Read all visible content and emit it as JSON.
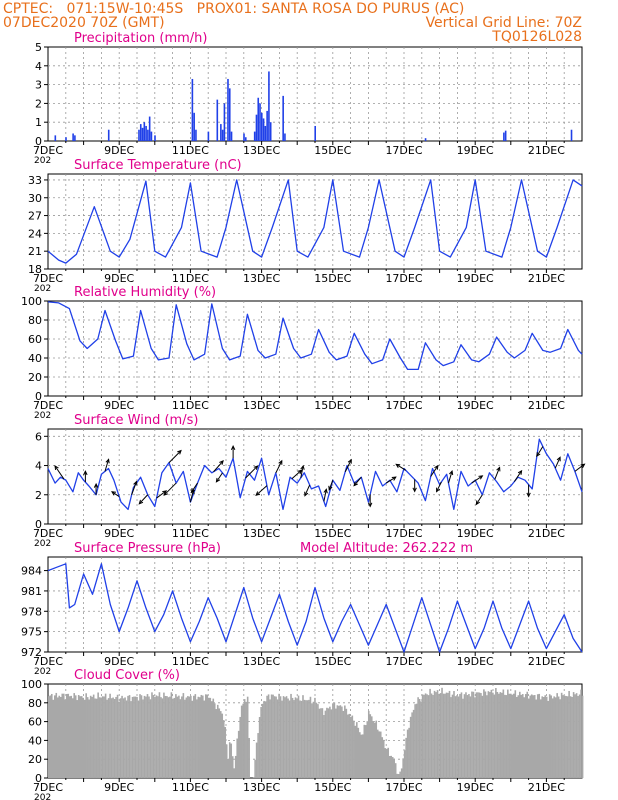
{
  "header": {
    "line1": "CPTEC:   071:15W-10:45S   PROX01: SANTA ROSA DO PURUS (AC)",
    "line2_left": "07DEC2020 70Z (GMT)",
    "line2_right": "Vertical Grid Line: 70Z",
    "line3_right": "TQ0126L028"
  },
  "colors": {
    "title": "#e8701c",
    "panel_title": "#e0008c",
    "series": "#2040e8",
    "bars": "#a8a8a8"
  },
  "x_axis": {
    "major_ticks": [
      "7DEC",
      "9DEC",
      "11DEC",
      "13DEC",
      "15DEC",
      "17DEC",
      "19DEC",
      "21DEC"
    ],
    "year_stub": "202"
  },
  "chart_data": [
    {
      "type": "bar",
      "title": "Precipitation (mm/h)",
      "ylim": [
        0,
        5
      ],
      "yticks": [
        "0",
        "1",
        "2",
        "3",
        "4",
        "5"
      ],
      "x_unit": "days since 7DEC 00Z",
      "bars": [
        [
          0.2,
          0.3
        ],
        [
          0.5,
          0.2
        ],
        [
          0.7,
          0.4
        ],
        [
          0.75,
          0.3
        ],
        [
          1.7,
          0.6
        ],
        [
          2.55,
          0.6
        ],
        [
          2.6,
          0.9
        ],
        [
          2.65,
          0.7
        ],
        [
          2.7,
          1.0
        ],
        [
          2.75,
          0.8
        ],
        [
          2.8,
          0.6
        ],
        [
          2.85,
          1.3
        ],
        [
          2.9,
          0.5
        ],
        [
          3.0,
          0.3
        ],
        [
          4.05,
          3.3
        ],
        [
          4.1,
          1.5
        ],
        [
          4.15,
          0.6
        ],
        [
          4.5,
          0.5
        ],
        [
          4.75,
          2.2
        ],
        [
          4.85,
          0.9
        ],
        [
          4.9,
          0.6
        ],
        [
          4.95,
          2.0
        ],
        [
          5.05,
          3.3
        ],
        [
          5.1,
          2.8
        ],
        [
          5.15,
          0.5
        ],
        [
          5.5,
          0.4
        ],
        [
          5.55,
          0.2
        ],
        [
          5.8,
          0.5
        ],
        [
          5.85,
          1.4
        ],
        [
          5.9,
          2.3
        ],
        [
          5.95,
          2.0
        ],
        [
          6.0,
          1.5
        ],
        [
          6.05,
          1.2
        ],
        [
          6.1,
          0.8
        ],
        [
          6.15,
          1.6
        ],
        [
          6.2,
          3.7
        ],
        [
          6.25,
          1.0
        ],
        [
          6.6,
          2.4
        ],
        [
          6.65,
          0.4
        ],
        [
          7.5,
          0.8
        ],
        [
          10.6,
          0.15
        ],
        [
          12.8,
          0.45
        ],
        [
          12.85,
          0.55
        ],
        [
          14.7,
          0.6
        ]
      ]
    },
    {
      "type": "line",
      "title": "Surface Temperature (nC)",
      "ylim": [
        18,
        34
      ],
      "yticks": [
        "18",
        "21",
        "24",
        "27",
        "30",
        "33"
      ],
      "x_unit": "days since 7DEC 00Z",
      "x": [
        0,
        0.3,
        0.5,
        0.8,
        1.3,
        1.75,
        2.0,
        2.3,
        2.75,
        3.0,
        3.3,
        3.75,
        4.0,
        4.3,
        4.75,
        5.0,
        5.3,
        5.75,
        6.0,
        6.3,
        6.75,
        7.0,
        7.3,
        7.75,
        8.0,
        8.3,
        8.75,
        9.0,
        9.3,
        9.75,
        10.0,
        10.3,
        10.75,
        11.0,
        11.3,
        11.75,
        12.0,
        12.3,
        12.75,
        13.0,
        13.3,
        13.75,
        14.0,
        14.3,
        14.75,
        15.0
      ],
      "y": [
        21,
        19.5,
        19,
        20.5,
        28.5,
        21,
        20,
        23,
        32.8,
        21,
        20,
        25,
        32.5,
        21,
        20,
        25,
        33,
        21,
        20,
        25,
        33,
        21,
        20,
        25,
        33,
        21,
        20,
        25,
        33,
        21,
        20,
        25,
        33,
        21,
        20,
        25,
        33,
        21,
        20,
        25,
        33,
        21,
        20,
        25,
        33,
        32
      ]
    },
    {
      "type": "line",
      "title": "Relative Humidity (%)",
      "ylim": [
        0,
        100
      ],
      "yticks": [
        "0",
        "20",
        "40",
        "60",
        "80",
        "100"
      ],
      "x_unit": "days since 7DEC 00Z",
      "x": [
        0,
        0.3,
        0.6,
        0.9,
        1.1,
        1.4,
        1.6,
        1.9,
        2.1,
        2.4,
        2.6,
        2.9,
        3.1,
        3.4,
        3.6,
        3.9,
        4.1,
        4.4,
        4.6,
        4.9,
        5.1,
        5.4,
        5.6,
        5.9,
        6.1,
        6.4,
        6.6,
        6.9,
        7.1,
        7.4,
        7.6,
        7.9,
        8.1,
        8.4,
        8.6,
        8.9,
        9.1,
        9.4,
        9.6,
        9.9,
        10.1,
        10.4,
        10.6,
        10.9,
        11.1,
        11.4,
        11.6,
        11.9,
        12.1,
        12.4,
        12.6,
        12.9,
        13.1,
        13.4,
        13.6,
        13.9,
        14.1,
        14.4,
        14.6,
        14.9,
        15.0
      ],
      "y": [
        99,
        98,
        92,
        58,
        50,
        60,
        90,
        58,
        39,
        42,
        90,
        50,
        38,
        40,
        96,
        55,
        38,
        44,
        97,
        50,
        38,
        42,
        86,
        48,
        40,
        44,
        82,
        50,
        40,
        44,
        70,
        46,
        38,
        42,
        66,
        44,
        34,
        38,
        60,
        40,
        28,
        28,
        56,
        38,
        32,
        36,
        54,
        38,
        36,
        44,
        62,
        46,
        40,
        48,
        66,
        48,
        46,
        50,
        70,
        48,
        44
      ]
    },
    {
      "type": "line",
      "title": "Surface Wind (m/s)",
      "ylim": [
        0,
        6.5
      ],
      "yticks": [
        "0",
        "2",
        "4",
        "6"
      ],
      "x_unit": "days since 7DEC 00Z",
      "x": [
        0,
        0.2,
        0.35,
        0.5,
        0.7,
        0.85,
        1.0,
        1.15,
        1.35,
        1.5,
        1.7,
        1.85,
        2.05,
        2.25,
        2.4,
        2.6,
        2.8,
        3.0,
        3.2,
        3.4,
        3.6,
        3.8,
        4.0,
        4.2,
        4.4,
        4.6,
        4.8,
        5.0,
        5.2,
        5.4,
        5.6,
        5.8,
        6.0,
        6.2,
        6.4,
        6.6,
        6.8,
        7.0,
        7.2,
        7.4,
        7.6,
        7.8,
        8.0,
        8.2,
        8.4,
        8.6,
        8.8,
        9.0,
        9.2,
        9.4,
        9.6,
        9.8,
        10.0,
        10.2,
        10.4,
        10.6,
        10.8,
        11.0,
        11.2,
        11.4,
        11.6,
        11.8,
        12.0,
        12.2,
        12.4,
        12.6,
        12.8,
        13.0,
        13.2,
        13.4,
        13.6,
        13.8,
        14.0,
        14.2,
        14.4,
        14.6,
        14.8,
        15.0
      ],
      "y": [
        3.8,
        2.8,
        3.2,
        3.0,
        2.2,
        3.5,
        3.0,
        2.6,
        2.0,
        3.4,
        3.8,
        3.0,
        1.5,
        1.0,
        2.5,
        3.2,
        2.0,
        1.2,
        3.5,
        4.2,
        2.8,
        3.6,
        1.5,
        2.8,
        4.0,
        3.5,
        3.8,
        3.2,
        4.5,
        1.8,
        3.6,
        3.0,
        4.5,
        2.0,
        3.5,
        1.0,
        3.2,
        2.8,
        3.5,
        2.4,
        2.6,
        1.2,
        3.0,
        2.3,
        4.0,
        2.8,
        3.2,
        1.5,
        3.6,
        2.6,
        3.0,
        2.2,
        3.8,
        3.3,
        2.8,
        1.6,
        3.8,
        2.7,
        3.4,
        1.0,
        3.6,
        2.6,
        3.0,
        2.0,
        3.5,
        2.9,
        2.2,
        2.6,
        3.2,
        3.0,
        2.4,
        5.8,
        4.8,
        4.1,
        3.0,
        4.8,
        3.6,
        2.2
      ],
      "vectors": [
        [
          0.45,
          -1.5,
          2.2
        ],
        [
          1.05,
          0.0,
          1.8
        ],
        [
          1.35,
          0.0,
          1.8
        ],
        [
          1.6,
          0.6,
          2.0
        ],
        [
          2.0,
          -1.2,
          0.8
        ],
        [
          2.35,
          0.8,
          2.2
        ],
        [
          2.8,
          -1.4,
          -1.5
        ],
        [
          3.05,
          1.6,
          1.2
        ],
        [
          3.4,
          2.0,
          2.0
        ],
        [
          3.6,
          -2.0,
          -2.0
        ],
        [
          4.0,
          0.5,
          2.0
        ],
        [
          4.2,
          -1.0,
          -1.5
        ],
        [
          4.65,
          1.6,
          1.8
        ],
        [
          4.9,
          -1.0,
          -1.5
        ],
        [
          5.2,
          0.0,
          2.0
        ],
        [
          5.55,
          2.0,
          2.0
        ],
        [
          6.15,
          -1.8,
          -1.6
        ],
        [
          6.4,
          1.0,
          2.0
        ],
        [
          6.85,
          1.6,
          1.4
        ],
        [
          7.1,
          0.4,
          2.0
        ],
        [
          7.35,
          -0.8,
          -1.8
        ],
        [
          7.75,
          0.4,
          2.0
        ],
        [
          8.0,
          -0.6,
          -1.6
        ],
        [
          8.35,
          1.0,
          2.0
        ],
        [
          8.8,
          -1.2,
          -1.4
        ],
        [
          9.05,
          0.0,
          -2.0
        ],
        [
          9.5,
          1.6,
          1.0
        ],
        [
          10.05,
          -1.6,
          1.0
        ],
        [
          10.3,
          0.0,
          -2.0
        ],
        [
          10.75,
          1.2,
          1.8
        ],
        [
          11.05,
          -0.8,
          -1.6
        ],
        [
          11.25,
          0.6,
          2.0
        ],
        [
          11.9,
          1.8,
          1.2
        ],
        [
          12.2,
          -1.0,
          -1.6
        ],
        [
          12.55,
          0.8,
          2.0
        ],
        [
          13.1,
          1.2,
          1.8
        ],
        [
          13.5,
          0.0,
          -2.0
        ],
        [
          13.9,
          -1.0,
          -1.6
        ],
        [
          14.25,
          0.8,
          1.8
        ],
        [
          14.8,
          1.6,
          1.2
        ]
      ]
    },
    {
      "type": "line",
      "title": "Surface Pressure (hPa)",
      "annotation": "Model Altitude: 262.222 m",
      "ylim": [
        972,
        986
      ],
      "yticks": [
        "972",
        "975",
        "978",
        "981",
        "984"
      ],
      "x_unit": "days since 7DEC 00Z",
      "x": [
        0,
        0.25,
        0.5,
        0.6,
        0.75,
        1.0,
        1.25,
        1.5,
        1.75,
        2.0,
        2.25,
        2.5,
        2.75,
        3.0,
        3.25,
        3.5,
        3.75,
        4.0,
        4.25,
        4.5,
        4.75,
        5.0,
        5.25,
        5.5,
        5.75,
        6.0,
        6.25,
        6.5,
        6.75,
        7.0,
        7.25,
        7.5,
        7.75,
        8.0,
        8.25,
        8.5,
        8.75,
        9.0,
        9.25,
        9.5,
        9.75,
        10.0,
        10.25,
        10.5,
        10.75,
        11.0,
        11.25,
        11.5,
        11.75,
        12.0,
        12.25,
        12.5,
        12.75,
        13.0,
        13.25,
        13.5,
        13.75,
        14.0,
        14.25,
        14.5,
        14.75,
        15.0
      ],
      "y": [
        984,
        984.5,
        985,
        978.5,
        979,
        983.5,
        980.5,
        985,
        979,
        975,
        978.5,
        982.5,
        978.5,
        975,
        977.5,
        981,
        977,
        973.5,
        976.5,
        980,
        977,
        973.5,
        977.5,
        981.5,
        977,
        973.5,
        977,
        980.5,
        976.5,
        973,
        976.5,
        981.5,
        977,
        973.5,
        976.5,
        979,
        976,
        973,
        976,
        979,
        975.5,
        972,
        976,
        980,
        976,
        972,
        975.5,
        979.5,
        976,
        972.5,
        975.5,
        979.5,
        975.5,
        972.5,
        976,
        979.5,
        975.5,
        972.5,
        975,
        977.5,
        974,
        972
      ]
    },
    {
      "type": "bar",
      "title": "Cloud Cover (%)",
      "ylim": [
        0,
        100
      ],
      "yticks": [
        "0",
        "20",
        "40",
        "60",
        "80",
        "100"
      ],
      "x_unit": "days since 7DEC 00Z",
      "description_free_values": [
        [
          0.0,
          87
        ],
        [
          0.5,
          88
        ],
        [
          1.0,
          86
        ],
        [
          1.5,
          87
        ],
        [
          2.0,
          85
        ],
        [
          2.5,
          86
        ],
        [
          3.0,
          88
        ],
        [
          3.5,
          87
        ],
        [
          4.0,
          86
        ],
        [
          4.5,
          87
        ],
        [
          4.9,
          68
        ],
        [
          5.05,
          20
        ],
        [
          5.1,
          45
        ],
        [
          5.2,
          10
        ],
        [
          5.3,
          40
        ],
        [
          5.4,
          75
        ],
        [
          5.6,
          88
        ],
        [
          5.65,
          0
        ],
        [
          5.75,
          0
        ],
        [
          5.9,
          60
        ],
        [
          6.0,
          80
        ],
        [
          6.2,
          88
        ],
        [
          6.5,
          86
        ],
        [
          7.0,
          85
        ],
        [
          7.5,
          82
        ],
        [
          7.7,
          70
        ],
        [
          8.0,
          78
        ],
        [
          8.3,
          75
        ],
        [
          8.6,
          60
        ],
        [
          8.8,
          45
        ],
        [
          9.0,
          70
        ],
        [
          9.3,
          50
        ],
        [
          9.5,
          30
        ],
        [
          9.7,
          20
        ],
        [
          9.85,
          0
        ],
        [
          9.95,
          20
        ],
        [
          10.1,
          55
        ],
        [
          10.3,
          80
        ],
        [
          10.6,
          90
        ],
        [
          11.0,
          92
        ],
        [
          11.5,
          88
        ],
        [
          12.0,
          90
        ],
        [
          12.5,
          92
        ],
        [
          13.0,
          90
        ],
        [
          13.5,
          88
        ],
        [
          14.0,
          86
        ],
        [
          14.5,
          88
        ],
        [
          15.0,
          90
        ]
      ]
    }
  ]
}
